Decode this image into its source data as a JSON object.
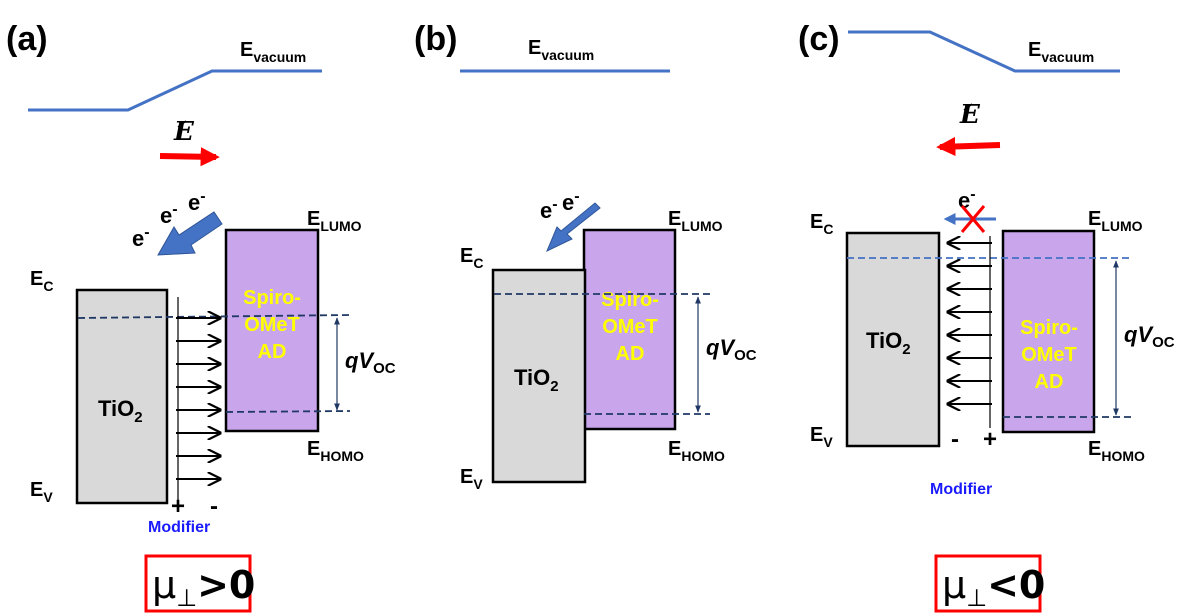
{
  "panels": {
    "a": {
      "label": "(a)",
      "vacuum": {
        "main": "E",
        "sub": "vacuum"
      },
      "field": "E",
      "ec": {
        "main": "E",
        "sub": "C"
      },
      "ev": {
        "main": "E",
        "sub": "V"
      },
      "elumo": {
        "main": "E",
        "sub": "LUMO"
      },
      "ehomo": {
        "main": "E",
        "sub": "HOMO"
      },
      "tio2": {
        "main": "TiO",
        "sub": "2"
      },
      "spiro": [
        "Spiro-",
        "OMeT",
        "AD"
      ],
      "electrons": [
        "e",
        "e",
        "e"
      ],
      "electron_sup": "-",
      "qvoc": {
        "q": "q",
        "v": "V",
        "sub": "OC"
      },
      "sign_left": "+",
      "sign_right": "-",
      "modifier": "Modifier",
      "mu": {
        "symbol": "μ",
        "sub": "⊥",
        "relation": ">0"
      }
    },
    "b": {
      "label": "(b)",
      "vacuum": {
        "main": "E",
        "sub": "vacuum"
      },
      "ec": {
        "main": "E",
        "sub": "C"
      },
      "ev": {
        "main": "E",
        "sub": "V"
      },
      "elumo": {
        "main": "E",
        "sub": "LUMO"
      },
      "ehomo": {
        "main": "E",
        "sub": "HOMO"
      },
      "tio2": {
        "main": "TiO",
        "sub": "2"
      },
      "spiro": [
        "Spiro-",
        "OMeT",
        "AD"
      ],
      "electrons": [
        "e",
        "e"
      ],
      "electron_sup": "-",
      "qvoc": {
        "q": "q",
        "v": "V",
        "sub": "OC"
      }
    },
    "c": {
      "label": "(c)",
      "vacuum": {
        "main": "E",
        "sub": "vacuum"
      },
      "field": "E",
      "ec": {
        "main": "E",
        "sub": "C"
      },
      "ev": {
        "main": "E",
        "sub": "V"
      },
      "elumo": {
        "main": "E",
        "sub": "LUMO"
      },
      "ehomo": {
        "main": "E",
        "sub": "HOMO"
      },
      "tio2": {
        "main": "TiO",
        "sub": "2"
      },
      "spiro": [
        "Spiro-",
        "OMeT",
        "AD"
      ],
      "electrons": [
        "e"
      ],
      "electron_sup": "-",
      "qvoc": {
        "q": "q",
        "v": "V",
        "sub": "OC"
      },
      "sign_left": "-",
      "sign_right": "+",
      "modifier": "Modifier",
      "mu": {
        "symbol": "μ",
        "sub": "⊥",
        "relation": "<0"
      }
    }
  },
  "colors": {
    "vacuum_line": "#4472c4",
    "tio2_fill": "#d9d9d9",
    "spiro_fill": "#c9a5ec",
    "spiro_text": "#ffff00",
    "field_arrow": "#ff0000",
    "electron_arrow": "#4472c4",
    "dashed_level": "#1f3864",
    "modifier_text": "#1a1aff",
    "mu_box": "#ff0000"
  }
}
